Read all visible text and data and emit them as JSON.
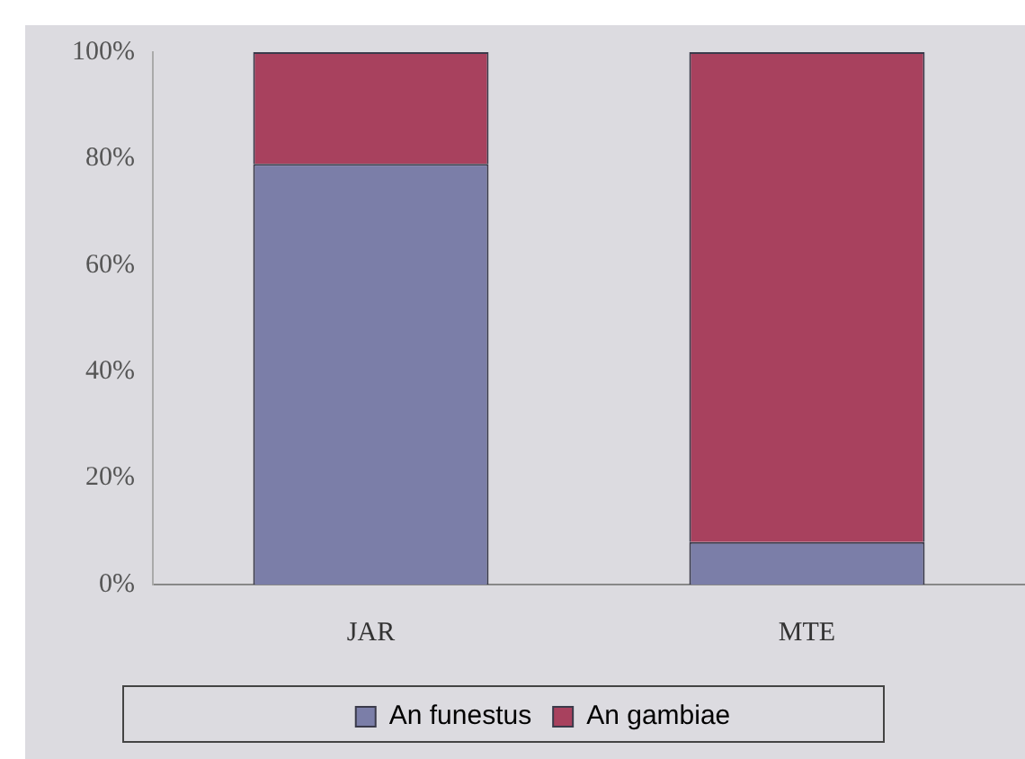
{
  "chart_data": {
    "type": "bar",
    "stacked": true,
    "categories": [
      "JAR",
      "MTE"
    ],
    "series": [
      {
        "name": "An funestus",
        "color": "#7b7ea8",
        "values": [
          79,
          8
        ]
      },
      {
        "name": "An gambiae",
        "color": "#a8415e",
        "values": [
          21,
          92
        ]
      }
    ],
    "ylim": [
      0,
      100
    ],
    "yticks": [
      {
        "value": 0,
        "label": "0%"
      },
      {
        "value": 20,
        "label": "20%"
      },
      {
        "value": 40,
        "label": "40%"
      },
      {
        "value": 60,
        "label": "60%"
      },
      {
        "value": 80,
        "label": "80%"
      },
      {
        "value": 100,
        "label": "100%"
      }
    ],
    "grid": false,
    "legend": "bottom"
  }
}
